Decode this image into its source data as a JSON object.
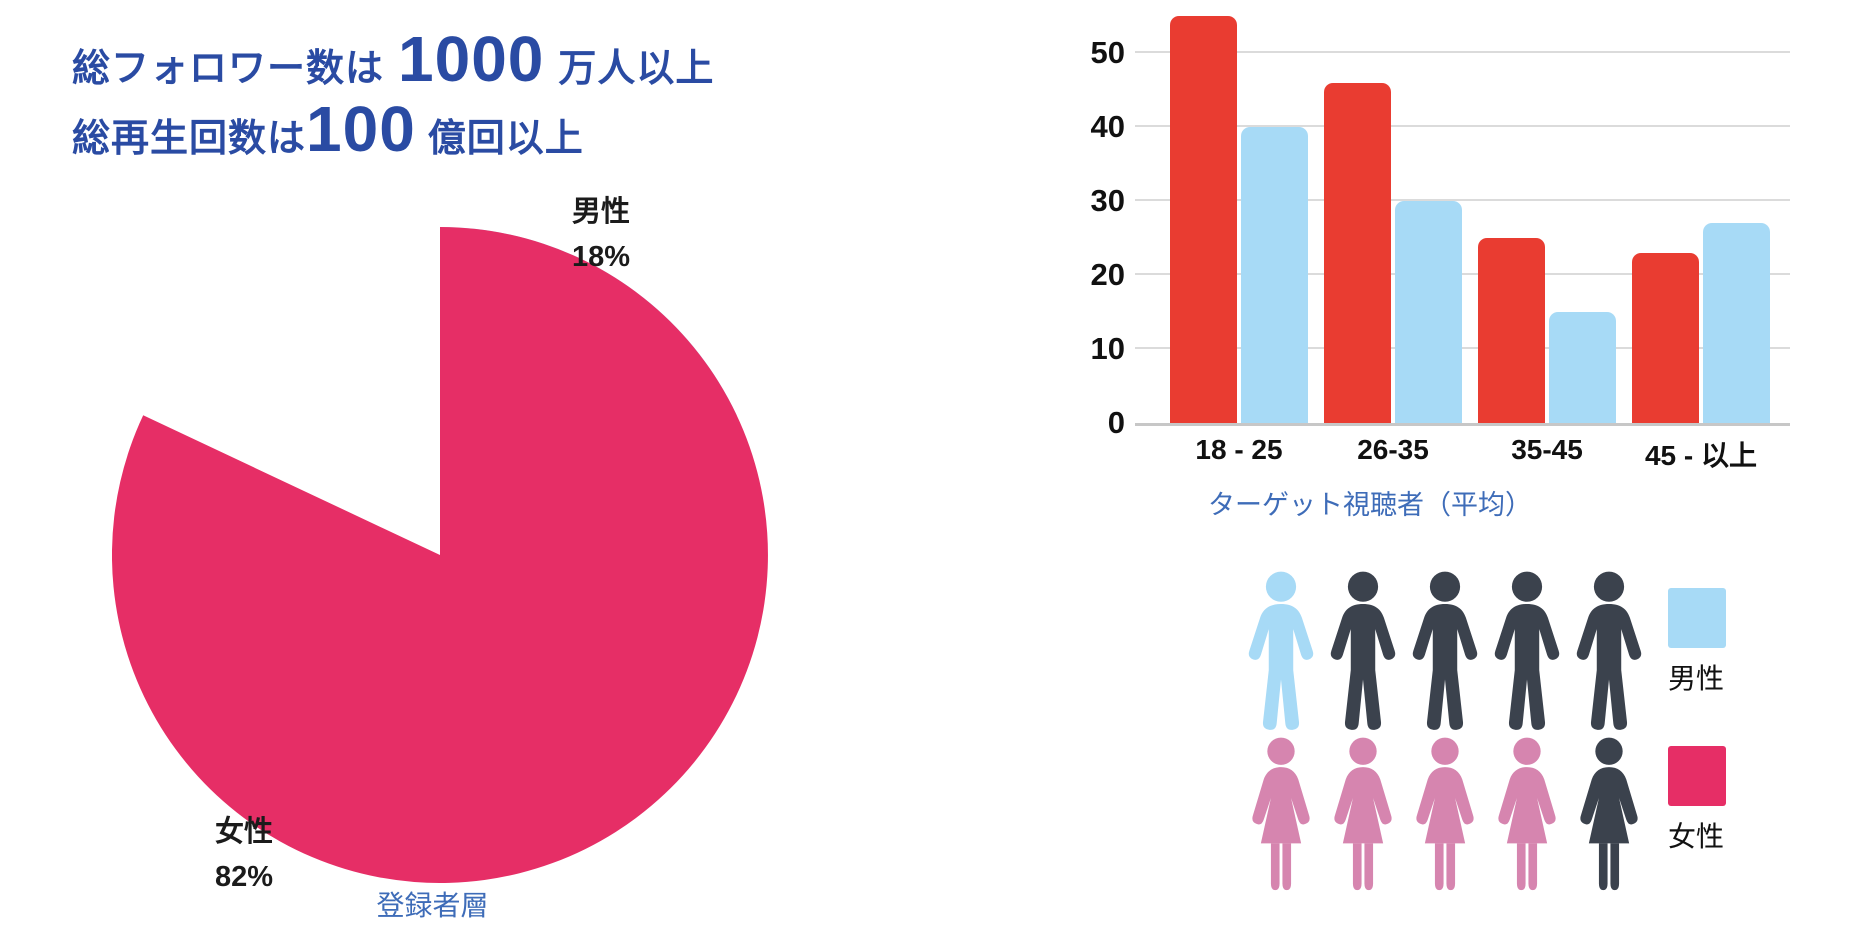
{
  "title": {
    "line1_pre": "総フォロワー数は",
    "line1_big": "1000",
    "line1_post": "万人以上",
    "line2_pre": "総再生回数は",
    "line2_big": "100",
    "line2_post": "億回以上"
  },
  "colors": {
    "title_blue": "#2A4BA3",
    "caption_blue": "#3E6CB8",
    "pink": "#E62E66",
    "light_blue": "#A7DAF6",
    "bar_red": "#E93C31",
    "dark_person": "#3B424D",
    "pink_person": "#D685AF",
    "grid": "#DBDBDB",
    "text_black": "#111111"
  },
  "chart_data": [
    {
      "type": "pie",
      "title": "登録者層",
      "start_angle_deg": -90,
      "direction": "clockwise",
      "slices": [
        {
          "label": "男性",
          "pct": 18,
          "pct_label": "18%",
          "color_key": "light_blue"
        },
        {
          "label": "女性",
          "pct": 82,
          "pct_label": "82%",
          "color_key": "pink"
        }
      ]
    },
    {
      "type": "bar",
      "categories": [
        "18 - 25",
        "26-35",
        "35-45",
        "45 - 以上"
      ],
      "series": [
        {
          "name": "女性",
          "color_key": "bar_red",
          "values": [
            55,
            46,
            25,
            23
          ]
        },
        {
          "name": "男性",
          "color_key": "light_blue",
          "values": [
            40,
            30,
            15,
            27
          ]
        }
      ],
      "yticks": [
        0,
        10,
        20,
        30,
        40,
        50
      ],
      "ylim": [
        0,
        57
      ],
      "grid": true,
      "xlabel": "ターゲット視聴者（平均）",
      "legend_position": "below-right"
    }
  ],
  "pictogram": {
    "male_row": {
      "total": 5,
      "highlighted": 1,
      "highlight_color_key": "light_blue",
      "base_color_key": "dark_person"
    },
    "female_row": {
      "total": 5,
      "highlighted": 4,
      "highlight_color_key": "pink_person",
      "base_color_key": "dark_person"
    }
  },
  "legend": {
    "male": "男性",
    "female": "女性"
  }
}
